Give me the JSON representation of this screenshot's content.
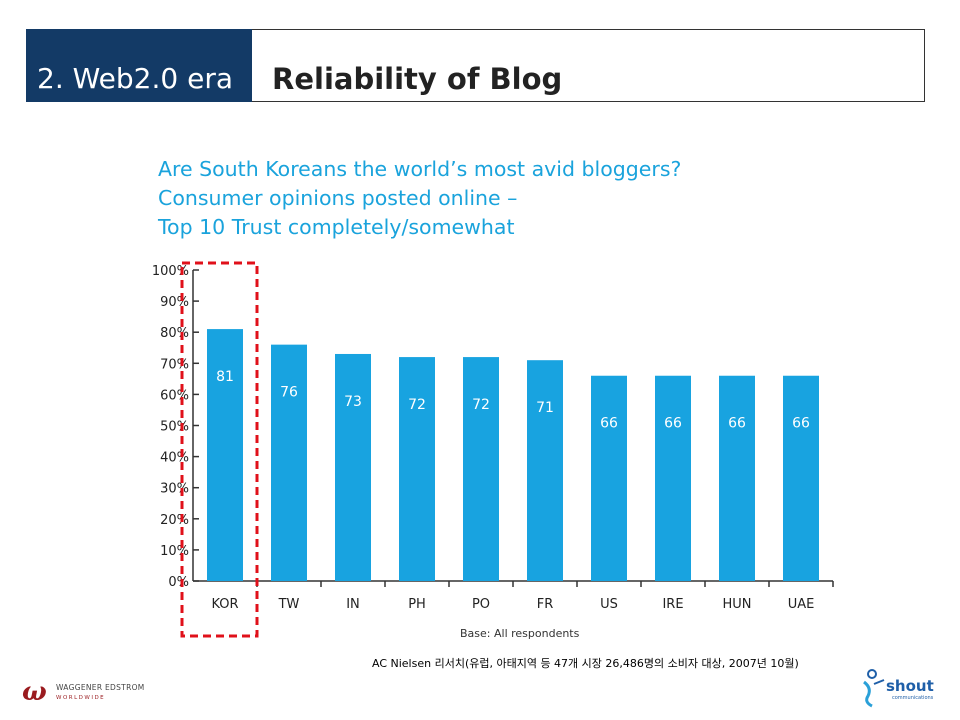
{
  "header": {
    "section_label": "2. Web2.0 era",
    "title": "Reliability of Blog"
  },
  "chart_data": {
    "type": "bar",
    "title_lines": [
      "Are South Koreans the world’s most avid bloggers?",
      "Consumer opinions posted online –",
      "Top 10 Trust completely/somewhat"
    ],
    "categories": [
      "KOR",
      "TW",
      "IN",
      "PH",
      "PO",
      "FR",
      "US",
      "IRE",
      "HUN",
      "UAE"
    ],
    "values": [
      81,
      76,
      73,
      72,
      72,
      71,
      66,
      66,
      66,
      66
    ],
    "data_labels": [
      "81",
      "76",
      "73",
      "72",
      "72",
      "71",
      "66",
      "66",
      "66",
      "66"
    ],
    "y_ticks": [
      "0%",
      "10%",
      "20%",
      "30%",
      "40%",
      "50%",
      "60%",
      "70%",
      "80%",
      "90%",
      "100%"
    ],
    "ylim": [
      0,
      100
    ],
    "note": "Base: All respondents",
    "highlight_category": "KOR",
    "colors": {
      "bar": "#18a3e0",
      "title": "#1aa3dc",
      "highlight": "#e0101a",
      "axis": "#333333"
    }
  },
  "footer": {
    "source": "AC Nielsen 리서치(유럽, 아태지역 등 47개 시장 26,486명의 소비자 대상, 2007년 10월)",
    "logo_left": {
      "name": "WAGGENER EDSTROM",
      "sub": "WORLDWIDE",
      "icon": "waggener-edstrom-logo"
    },
    "logo_right": {
      "name": "shout",
      "sub": "communications",
      "icon": "shout-logo"
    }
  }
}
